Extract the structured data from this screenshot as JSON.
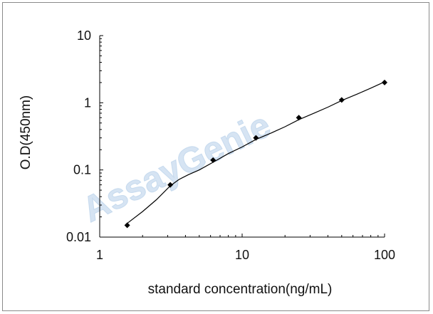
{
  "chart_data": {
    "type": "line",
    "xscale": "log",
    "yscale": "log",
    "xlim": [
      1,
      100
    ],
    "ylim": [
      0.01,
      10
    ],
    "x_ticks": [
      "1",
      "10",
      "100"
    ],
    "y_ticks": [
      "0.01",
      "0.1",
      "1",
      "10"
    ],
    "xlabel": "standard concentration(ng/mL)",
    "ylabel": "O.D(450nm)",
    "grid": false,
    "series": [
      {
        "x": [
          1.56,
          3.13,
          6.25,
          12.5,
          25,
          50,
          100
        ],
        "y": [
          0.015,
          0.06,
          0.14,
          0.3,
          0.6,
          1.1,
          2.0
        ],
        "color": "#000000",
        "marker": "diamond"
      }
    ],
    "fit_curve": {
      "x": [
        1.56,
        2.0,
        2.5,
        3.13,
        3.6,
        4.2,
        5.0,
        6.25,
        8.0,
        10.0,
        12.5,
        16.0,
        20.0,
        25,
        32,
        40,
        50,
        65,
        80,
        100
      ],
      "y": [
        0.016,
        0.024,
        0.036,
        0.058,
        0.072,
        0.085,
        0.1,
        0.13,
        0.175,
        0.22,
        0.285,
        0.355,
        0.44,
        0.56,
        0.7,
        0.86,
        1.08,
        1.36,
        1.65,
        2.05
      ]
    }
  },
  "watermark": "AssayGenie"
}
